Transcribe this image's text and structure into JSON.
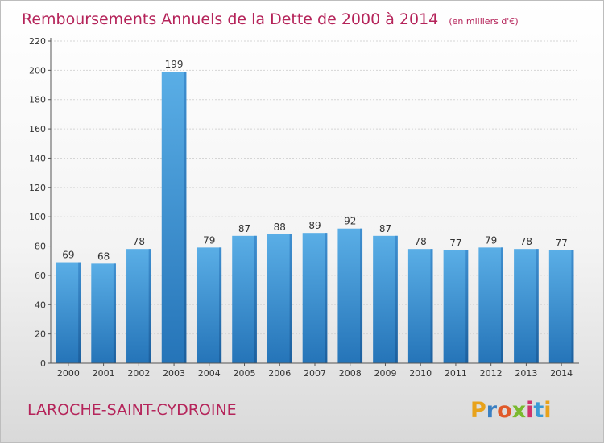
{
  "title": "Remboursements Annuels de la Dette de 2000 à 2014",
  "unit": "(en milliers d'€)",
  "commune": "LAROCHE-SAINT-CYDROINE",
  "logo": {
    "letters": [
      "P",
      "r",
      "o",
      "x",
      "i",
      "t",
      "i"
    ]
  },
  "colors": {
    "title": "#b5245a",
    "bar_top": "#5aaee6",
    "bar_bottom": "#2574b8"
  },
  "chart_data": {
    "type": "bar",
    "categories": [
      "2000",
      "2001",
      "2002",
      "2003",
      "2004",
      "2005",
      "2006",
      "2007",
      "2008",
      "2009",
      "2010",
      "2011",
      "2012",
      "2013",
      "2014"
    ],
    "values": [
      69,
      68,
      78,
      199,
      79,
      87,
      88,
      89,
      92,
      87,
      78,
      77,
      79,
      78,
      77
    ],
    "ylim": [
      0,
      220
    ],
    "yticks": [
      0,
      20,
      40,
      60,
      80,
      100,
      120,
      140,
      160,
      180,
      200,
      220
    ],
    "grid": true,
    "legend": "none"
  }
}
